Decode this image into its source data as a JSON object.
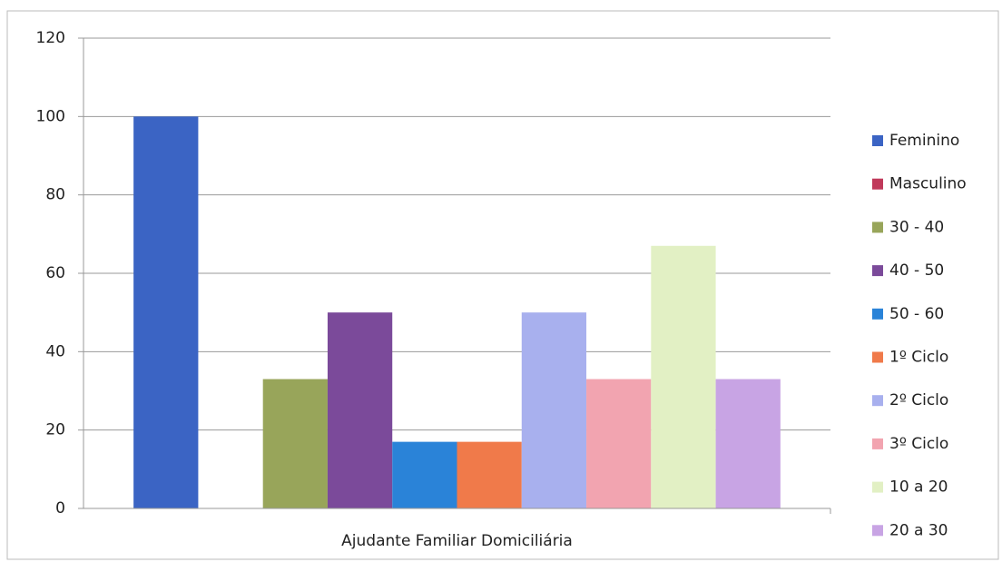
{
  "chart_data": {
    "type": "bar",
    "categories": [
      "Ajudante Familiar Domiciliária"
    ],
    "series": [
      {
        "name": "Feminino",
        "color": "#3b64c4",
        "values": [
          100
        ]
      },
      {
        "name": "Masculino",
        "color": "#c0395a",
        "values": [
          0
        ]
      },
      {
        "name": "30 - 40",
        "color": "#98a55a",
        "values": [
          33
        ]
      },
      {
        "name": "40 - 50",
        "color": "#7b4a9a",
        "values": [
          50
        ]
      },
      {
        "name": "50 - 60",
        "color": "#2a83d8",
        "values": [
          17
        ]
      },
      {
        "name": "1º Ciclo",
        "color": "#f07a4a",
        "values": [
          17
        ]
      },
      {
        "name": "2º Ciclo",
        "color": "#a8b0ee",
        "values": [
          50
        ]
      },
      {
        "name": "3º Ciclo",
        "color": "#f2a4b0",
        "values": [
          33
        ]
      },
      {
        "name": "10 a 20",
        "color": "#e2f0c4",
        "values": [
          67
        ]
      },
      {
        "name": "20 a 30",
        "color": "#c8a4e4",
        "values": [
          33
        ]
      }
    ],
    "ylim": [
      0,
      120
    ],
    "yticks": [
      0,
      20,
      40,
      60,
      80,
      100,
      120
    ],
    "grid": true,
    "legend": "right"
  }
}
